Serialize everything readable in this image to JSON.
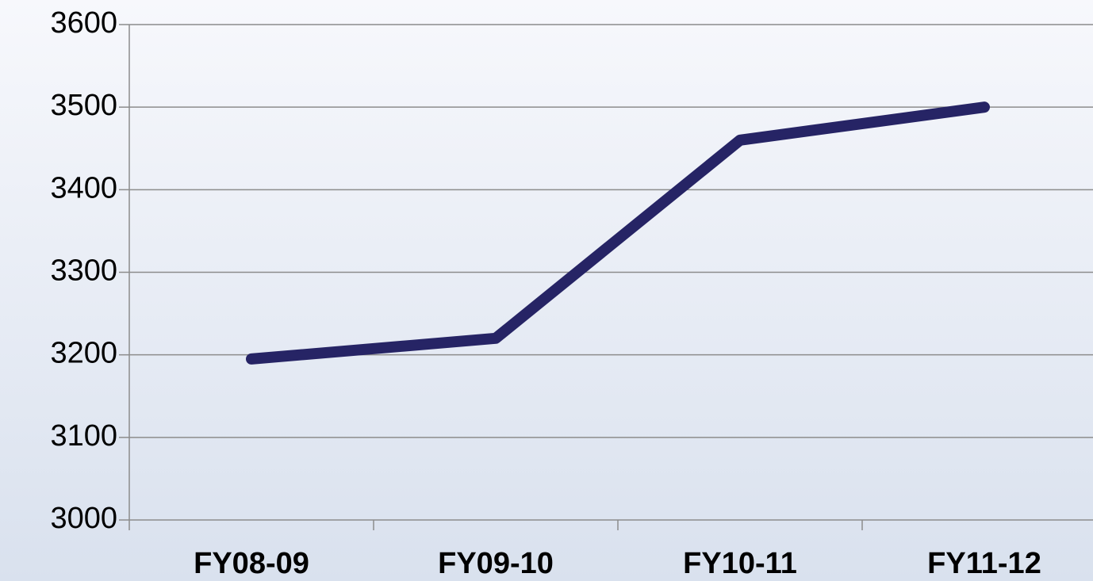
{
  "chart_data": {
    "type": "line",
    "categories": [
      "FY08-09",
      "FY09-10",
      "FY10-11",
      "FY11-12"
    ],
    "series": [
      {
        "color": "#262465",
        "values": [
          3195,
          3220,
          3460,
          3500
        ]
      }
    ],
    "ylim": [
      3000,
      3600
    ],
    "yticks": [
      3000,
      3100,
      3200,
      3300,
      3400,
      3500,
      3600
    ],
    "grid": true
  }
}
